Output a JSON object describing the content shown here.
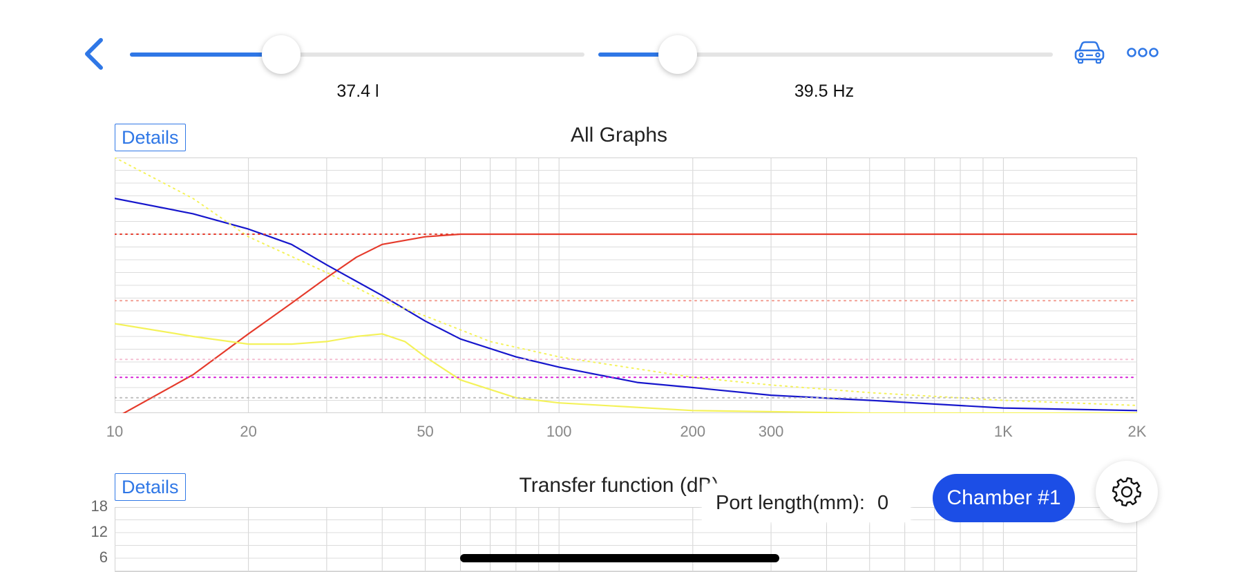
{
  "toolbar": {
    "back_icon": "chevron-left-icon",
    "car_icon": "car-icon",
    "more_icon": "more-dots-icon",
    "accent": "#2f77e6"
  },
  "sliders": [
    {
      "name": "volume",
      "value_label": "37.4 l",
      "fraction": 0.333
    },
    {
      "name": "tuning-frequency",
      "value_label": "39.5 Hz",
      "fraction": 0.175
    }
  ],
  "panels": [
    {
      "details_label": "Details",
      "title": "All Graphs",
      "chart_data": {
        "type": "line",
        "x_scale": "log",
        "xlim": [
          10,
          2000
        ],
        "x_ticks": [
          "10",
          "20",
          "50",
          "100",
          "200",
          "300",
          "1K",
          "2K"
        ],
        "x_tick_values": [
          10,
          20,
          50,
          100,
          200,
          300,
          1000,
          2000
        ],
        "grid": true,
        "y_normalized": true,
        "ylim": [
          0,
          1
        ],
        "series": [
          {
            "color": "#e53a2b",
            "style": "solid",
            "points": [
              [
                10,
                -0.02
              ],
              [
                15,
                0.15
              ],
              [
                20,
                0.31
              ],
              [
                25,
                0.43
              ],
              [
                30,
                0.53
              ],
              [
                35,
                0.61
              ],
              [
                40,
                0.66
              ],
              [
                50,
                0.69
              ],
              [
                60,
                0.7
              ],
              [
                80,
                0.7
              ],
              [
                100,
                0.7
              ],
              [
                200,
                0.7
              ],
              [
                500,
                0.7
              ],
              [
                1000,
                0.7
              ],
              [
                2000,
                0.7
              ]
            ]
          },
          {
            "color": "#1616cc",
            "style": "solid",
            "points": [
              [
                10,
                0.84
              ],
              [
                15,
                0.78
              ],
              [
                20,
                0.72
              ],
              [
                25,
                0.66
              ],
              [
                30,
                0.58
              ],
              [
                40,
                0.46
              ],
              [
                50,
                0.36
              ],
              [
                60,
                0.29
              ],
              [
                80,
                0.22
              ],
              [
                100,
                0.18
              ],
              [
                150,
                0.12
              ],
              [
                200,
                0.1
              ],
              [
                300,
                0.07
              ],
              [
                500,
                0.05
              ],
              [
                1000,
                0.02
              ],
              [
                2000,
                0.01
              ]
            ]
          },
          {
            "color": "#f4f25a",
            "style": "solid",
            "points": [
              [
                10,
                0.35
              ],
              [
                15,
                0.3
              ],
              [
                20,
                0.27
              ],
              [
                25,
                0.27
              ],
              [
                30,
                0.28
              ],
              [
                35,
                0.3
              ],
              [
                40,
                0.31
              ],
              [
                45,
                0.28
              ],
              [
                50,
                0.22
              ],
              [
                60,
                0.13
              ],
              [
                80,
                0.06
              ],
              [
                100,
                0.04
              ],
              [
                200,
                0.01
              ],
              [
                500,
                0.0
              ],
              [
                2000,
                0.0
              ]
            ]
          },
          {
            "color": "#f4f25a",
            "style": "dotted",
            "points": [
              [
                10,
                1.0
              ],
              [
                15,
                0.84
              ],
              [
                20,
                0.69
              ],
              [
                30,
                0.55
              ],
              [
                40,
                0.44
              ],
              [
                50,
                0.38
              ],
              [
                70,
                0.28
              ],
              [
                100,
                0.22
              ],
              [
                200,
                0.14
              ],
              [
                300,
                0.11
              ],
              [
                500,
                0.08
              ],
              [
                1000,
                0.05
              ],
              [
                2000,
                0.03
              ]
            ]
          },
          {
            "color": "#e53a2b",
            "style": "dotted",
            "points": [
              [
                10,
                0.7
              ],
              [
                2000,
                0.7
              ]
            ]
          },
          {
            "color": "#f29a8e",
            "style": "dotted",
            "points": [
              [
                10,
                0.44
              ],
              [
                2000,
                0.44
              ]
            ]
          },
          {
            "color": "#f4bcd0",
            "style": "dotted",
            "points": [
              [
                10,
                0.21
              ],
              [
                2000,
                0.21
              ]
            ]
          },
          {
            "color": "#d61ad6",
            "style": "dotted",
            "points": [
              [
                10,
                0.14
              ],
              [
                2000,
                0.14
              ]
            ]
          },
          {
            "color": "#bbbbbb",
            "style": "dotted",
            "points": [
              [
                10,
                0.06
              ],
              [
                2000,
                0.06
              ]
            ]
          }
        ]
      }
    },
    {
      "details_label": "Details",
      "title": "Transfer function (dB)",
      "chart_data": {
        "type": "line",
        "title": "Transfer function (dB)",
        "x_scale": "log",
        "xlim": [
          10,
          2000
        ],
        "y_ticks": [
          "18",
          "12",
          "6"
        ],
        "y_tick_values": [
          18,
          12,
          6
        ],
        "grid": true,
        "series": []
      }
    }
  ],
  "overlay": {
    "port_label": "Port length(mm):",
    "port_value": "0",
    "chamber_label": "Chamber #1",
    "chamber_color": "#1c4ee6",
    "settings_icon": "gear-icon"
  }
}
